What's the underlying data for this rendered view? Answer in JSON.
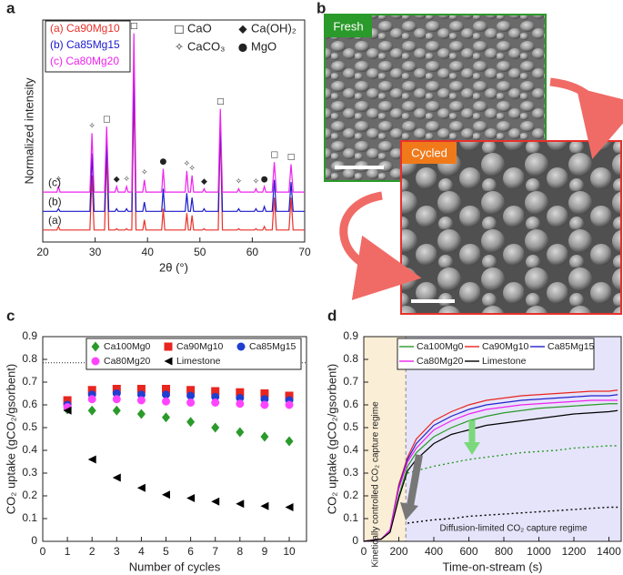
{
  "chart_data": [
    {
      "type": "line",
      "panel": "a",
      "xlabel": "2θ (°)",
      "ylabel": "Normalized intensity",
      "xlim": [
        20,
        70
      ],
      "xticks": [
        20,
        30,
        40,
        50,
        60,
        70
      ],
      "ylim": [
        0,
        100
      ],
      "x": [
        20,
        22.7,
        23.0,
        23.3,
        29.0,
        29.4,
        29.8,
        31.8,
        32.2,
        32.6,
        33.8,
        34.1,
        34.4,
        35.7,
        36.0,
        36.3,
        37.0,
        37.4,
        37.8,
        39.1,
        39.4,
        39.7,
        42.7,
        43.0,
        43.3,
        47.2,
        47.5,
        47.8,
        48.2,
        48.5,
        48.8,
        50.5,
        50.8,
        51.1,
        53.5,
        53.9,
        54.3,
        57.1,
        57.4,
        57.7,
        60.4,
        60.7,
        61.0,
        62.0,
        62.3,
        62.6,
        63.8,
        64.2,
        64.6,
        67.0,
        67.4,
        67.8,
        70
      ],
      "series": [
        {
          "name": "(a) Ca90Mg10",
          "color": "#e8302a",
          "values": [
            5.4,
            5.4,
            7,
            5.4,
            5.4,
            30,
            5.4,
            5.4,
            40,
            5.4,
            5.4,
            6,
            5.4,
            5.4,
            6,
            5.4,
            5.4,
            70,
            5.4,
            5.4,
            10,
            5.4,
            5.4,
            15,
            5.4,
            5.4,
            13,
            5.4,
            5.4,
            12,
            5.4,
            5.4,
            6,
            5.4,
            5.4,
            52,
            5.4,
            5.4,
            6,
            5.4,
            5.4,
            6,
            5.4,
            5.4,
            7,
            5.4,
            5.4,
            20,
            5.4,
            5.4,
            20,
            5.4,
            5.4
          ]
        },
        {
          "name": "(b) Ca85Mg15",
          "color": "#1a1acc",
          "values": [
            13.8,
            13.8,
            15,
            13.8,
            13.8,
            40,
            13.8,
            13.8,
            46,
            13.8,
            13.8,
            15,
            13.8,
            13.8,
            15,
            13.8,
            13.8,
            80,
            13.8,
            13.8,
            18,
            13.8,
            13.8,
            24,
            13.8,
            13.8,
            22,
            13.8,
            13.8,
            20,
            13.8,
            13.8,
            15,
            13.8,
            13.8,
            55,
            13.8,
            13.8,
            15,
            13.8,
            13.8,
            15,
            13.8,
            13.8,
            16,
            13.8,
            13.8,
            28,
            13.8,
            13.8,
            27,
            13.8,
            13.8
          ]
        },
        {
          "name": "(c) Ca80Mg20",
          "color": "#ee22ee",
          "values": [
            22.5,
            22.5,
            25,
            22.5,
            22.5,
            49,
            22.5,
            22.5,
            52,
            22.5,
            22.5,
            25,
            22.5,
            22.5,
            25,
            22.5,
            22.5,
            94,
            22.5,
            22.5,
            28,
            22.5,
            22.5,
            33,
            22.5,
            22.5,
            32,
            22.5,
            22.5,
            30,
            22.5,
            22.5,
            24,
            22.5,
            22.5,
            60,
            22.5,
            22.5,
            24,
            22.5,
            22.5,
            24,
            22.5,
            22.5,
            25,
            22.5,
            22.5,
            36,
            22.5,
            22.5,
            35,
            22.5,
            22.5
          ]
        }
      ],
      "curve_labels": [
        "(a)",
        "(b)",
        "(c)"
      ],
      "phases": [
        {
          "symbol": "□",
          "label": "CaO"
        },
        {
          "symbol": "◆",
          "label": "Ca(OH)₂"
        },
        {
          "symbol": "✧",
          "label": "CaCO₃"
        },
        {
          "symbol": "●",
          "label": "MgO"
        }
      ],
      "peak_markers": [
        {
          "x": 23.0,
          "phase": 2
        },
        {
          "x": 29.4,
          "phase": 2
        },
        {
          "x": 32.2,
          "phase": 0
        },
        {
          "x": 34.1,
          "phase": 1
        },
        {
          "x": 36.0,
          "phase": 2
        },
        {
          "x": 37.4,
          "phase": 0
        },
        {
          "x": 39.4,
          "phase": 2
        },
        {
          "x": 43.0,
          "phase": 3
        },
        {
          "x": 47.5,
          "phase": 2
        },
        {
          "x": 48.5,
          "phase": 2
        },
        {
          "x": 50.8,
          "phase": 1
        },
        {
          "x": 53.9,
          "phase": 0
        },
        {
          "x": 57.4,
          "phase": 2
        },
        {
          "x": 60.7,
          "phase": 2
        },
        {
          "x": 62.3,
          "phase": 3
        },
        {
          "x": 64.2,
          "phase": 0
        },
        {
          "x": 67.4,
          "phase": 0
        }
      ]
    },
    {
      "type": "scatter",
      "panel": "c",
      "xlabel": "Number of cycles",
      "ylabel": "CO₂ uptake (gCO₂/gsorbent)",
      "xlim": [
        0,
        10.7
      ],
      "xticks": [
        0,
        1,
        2,
        3,
        4,
        5,
        6,
        7,
        8,
        9,
        10
      ],
      "ylim": [
        0,
        0.9
      ],
      "yticks": [
        0,
        0.1,
        0.2,
        0.3,
        0.4,
        0.5,
        0.6,
        0.7,
        0.8,
        0.9
      ],
      "reference_line": 0.785,
      "x": [
        1,
        2,
        3,
        4,
        5,
        6,
        7,
        8,
        9,
        10
      ],
      "series": [
        {
          "name": "Ca100Mg0",
          "color": "#2a9a2a",
          "marker": "diamond",
          "values": [
            0.58,
            0.575,
            0.575,
            0.56,
            0.545,
            0.525,
            0.5,
            0.48,
            0.46,
            0.44
          ]
        },
        {
          "name": "Ca90Mg10",
          "color": "#e8251e",
          "marker": "square",
          "values": [
            0.62,
            0.665,
            0.67,
            0.67,
            0.67,
            0.665,
            0.66,
            0.655,
            0.65,
            0.64
          ]
        },
        {
          "name": "Ca85Mg15",
          "color": "#1f3fd0",
          "marker": "circle",
          "values": [
            0.6,
            0.645,
            0.65,
            0.645,
            0.645,
            0.64,
            0.635,
            0.63,
            0.625,
            0.62
          ]
        },
        {
          "name": "Ca80Mg20",
          "color": "#ff44ff",
          "marker": "circle",
          "values": [
            0.59,
            0.625,
            0.625,
            0.62,
            0.615,
            0.61,
            0.61,
            0.605,
            0.6,
            0.6
          ]
        },
        {
          "name": "Limestone",
          "color": "#000000",
          "marker": "triangle-left",
          "values": [
            0.575,
            0.36,
            0.28,
            0.235,
            0.205,
            0.19,
            0.175,
            0.165,
            0.155,
            0.15
          ]
        }
      ]
    },
    {
      "type": "line",
      "panel": "d",
      "xlabel": "Time-on-stream (s)",
      "ylabel": "CO₂ uptake (gCO₂/gsorbent)",
      "xlim": [
        0,
        1470
      ],
      "xticks": [
        0,
        200,
        400,
        600,
        800,
        1000,
        1200,
        1400
      ],
      "ylim": [
        0,
        0.9
      ],
      "yticks": [
        0,
        0.1,
        0.2,
        0.3,
        0.4,
        0.5,
        0.6,
        0.7,
        0.8,
        0.9
      ],
      "regime_boundary": 240,
      "kinetic_label": "Kinetically controlled CO₂ capture regime",
      "diffusion_label": "Diffusion-limited CO₂ capture regime",
      "x": [
        0,
        100,
        150,
        200,
        250,
        300,
        400,
        500,
        600,
        700,
        800,
        900,
        1000,
        1100,
        1200,
        1300,
        1400,
        1450
      ],
      "series": [
        {
          "name": "Ca100Mg0",
          "color": "#2a9a2a",
          "values": [
            0,
            0.01,
            0.04,
            0.2,
            0.33,
            0.39,
            0.46,
            0.5,
            0.53,
            0.55,
            0.565,
            0.575,
            0.585,
            0.59,
            0.595,
            0.6,
            0.605,
            0.605
          ]
        },
        {
          "name": "Ca90Mg10",
          "color": "#e8251e",
          "values": [
            0,
            0.01,
            0.05,
            0.25,
            0.37,
            0.45,
            0.53,
            0.57,
            0.6,
            0.62,
            0.63,
            0.64,
            0.645,
            0.65,
            0.655,
            0.66,
            0.66,
            0.665
          ]
        },
        {
          "name": "Ca85Mg15",
          "color": "#2222cc",
          "values": [
            0,
            0.01,
            0.05,
            0.24,
            0.36,
            0.43,
            0.51,
            0.55,
            0.58,
            0.6,
            0.61,
            0.62,
            0.625,
            0.63,
            0.635,
            0.64,
            0.64,
            0.645
          ]
        },
        {
          "name": "Ca80Mg20",
          "color": "#ee22ee",
          "values": [
            0,
            0.01,
            0.05,
            0.23,
            0.35,
            0.41,
            0.49,
            0.53,
            0.56,
            0.58,
            0.59,
            0.6,
            0.605,
            0.61,
            0.615,
            0.62,
            0.62,
            0.62
          ]
        },
        {
          "name": "Limestone",
          "color": "#000000",
          "values": [
            0,
            0.01,
            0.04,
            0.19,
            0.31,
            0.36,
            0.43,
            0.47,
            0.49,
            0.51,
            0.52,
            0.53,
            0.54,
            0.55,
            0.56,
            0.565,
            0.57,
            0.575
          ]
        },
        {
          "color": "#2a9a2a",
          "dash": true,
          "values": [
            null,
            null,
            null,
            null,
            0.3,
            0.31,
            0.33,
            0.345,
            0.36,
            0.37,
            0.38,
            0.39,
            0.395,
            0.4,
            0.41,
            0.415,
            0.42,
            0.42
          ]
        },
        {
          "color": "#000000",
          "dash": true,
          "values": [
            null,
            null,
            null,
            null,
            0.08,
            0.085,
            0.095,
            0.1,
            0.11,
            0.115,
            0.12,
            0.125,
            0.13,
            0.135,
            0.14,
            0.145,
            0.15,
            0.15
          ]
        }
      ]
    }
  ],
  "image_panel": {
    "panel": "b",
    "fresh_label": "Fresh",
    "cycled_label": "Cycled"
  }
}
